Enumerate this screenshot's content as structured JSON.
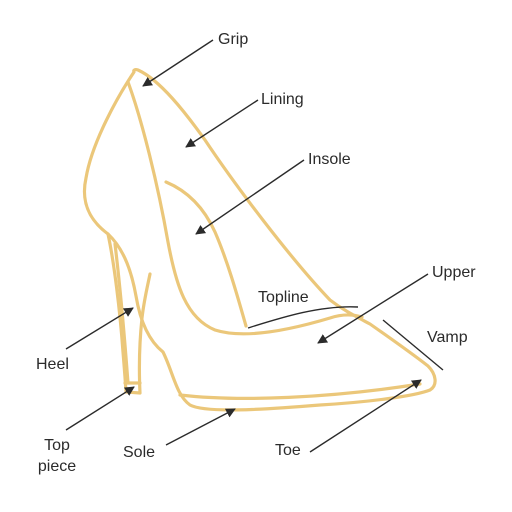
{
  "colors": {
    "shoe_outline": "#EBC77A",
    "callout_line": "#2b2b2b",
    "text": "#2b2b2b",
    "background": "#ffffff"
  },
  "labels": {
    "grip": "Grip",
    "lining": "Lining",
    "insole": "Insole",
    "upper": "Upper",
    "topline": "Topline",
    "vamp": "Vamp",
    "heel": "Heel",
    "top_piece_line1": "Top",
    "top_piece_line2": "piece",
    "sole": "Sole",
    "toe": "Toe"
  }
}
